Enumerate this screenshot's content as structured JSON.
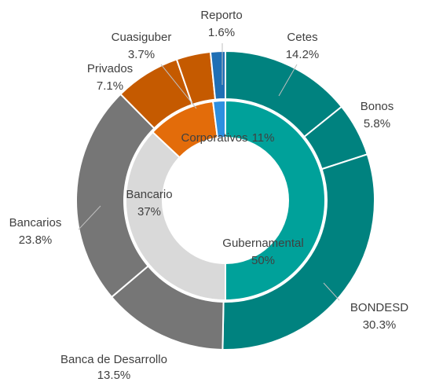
{
  "chart_data": {
    "type": "donut",
    "rings": [
      {
        "categories": [
          "Gubernamental",
          "Bancario",
          "Corporativos",
          null
        ],
        "values": [
          50,
          37,
          11,
          2
        ],
        "value_labels": [
          "50%",
          "37%",
          "11%",
          null
        ],
        "colors": [
          "#00a19a",
          "#d9d9d9",
          "#e36c0a",
          "#2e8fe0"
        ]
      },
      {
        "categories": [
          "Cetes",
          "Bonos",
          "BONDESD",
          "Banca de Desarrollo",
          "Bancarios",
          "Privados",
          "Cuasiguber",
          "Reporto"
        ],
        "values": [
          14.2,
          5.8,
          30.3,
          13.5,
          23.8,
          7.1,
          3.7,
          1.6
        ],
        "value_labels": [
          "14.2%",
          "5.8%",
          "30.3%",
          "13.5%",
          "23.8%",
          "7.1%",
          "3.7%",
          "1.6%"
        ],
        "colors": [
          "#00827f",
          "#00827f",
          "#00827f",
          "#767676",
          "#767676",
          "#c55a00",
          "#c55a00",
          "#1f6fb5"
        ]
      }
    ]
  }
}
